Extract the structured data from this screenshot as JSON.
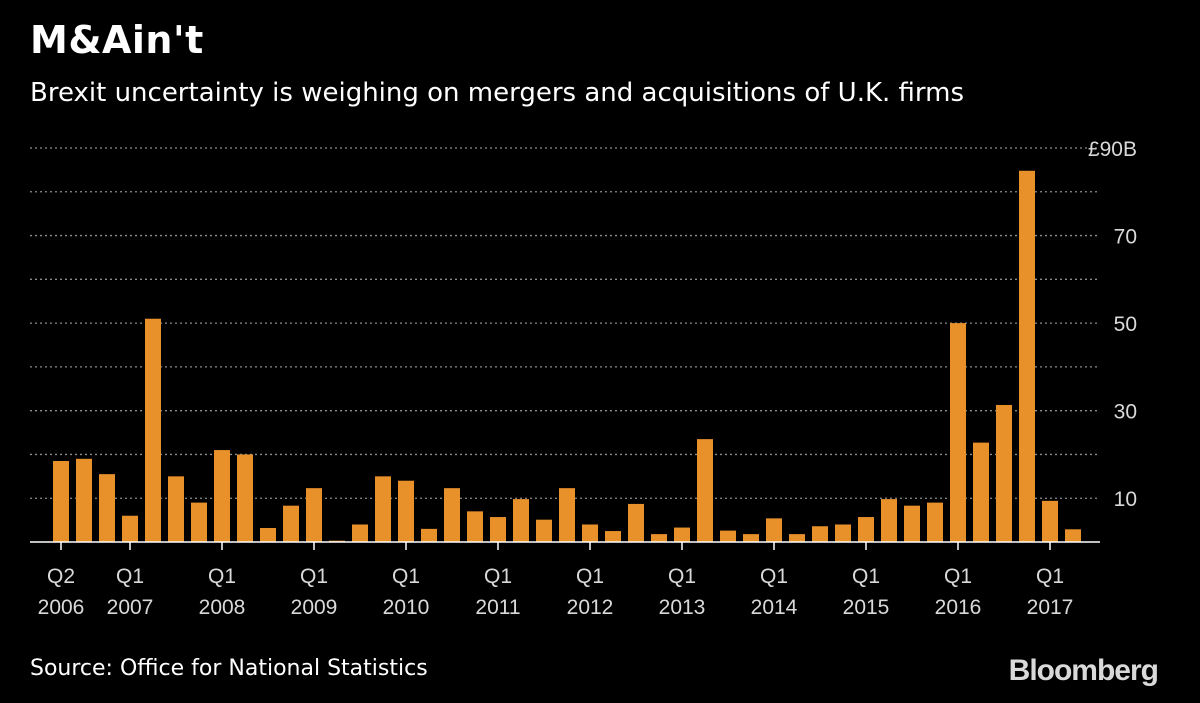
{
  "title": "M&Ain't",
  "subtitle": "Brexit uncertainty is weighing on mergers and acquisitions of U.K. firms",
  "source": "Source: Office for National Statistics",
  "brand": "Bloomberg",
  "colors": {
    "background": "#000000",
    "bar": "#e8912b",
    "grid": "#8c8c8c",
    "text": "#ffffff",
    "axis_text": "#d9d9d9"
  },
  "chart_data": {
    "type": "bar",
    "frequency": "quarterly",
    "categories": [
      "Q2 2006",
      "Q3 2006",
      "Q4 2006",
      "Q1 2007",
      "Q2 2007",
      "Q3 2007",
      "Q4 2007",
      "Q1 2008",
      "Q2 2008",
      "Q3 2008",
      "Q4 2008",
      "Q1 2009",
      "Q2 2009",
      "Q3 2009",
      "Q4 2009",
      "Q1 2010",
      "Q2 2010",
      "Q3 2010",
      "Q4 2010",
      "Q1 2011",
      "Q2 2011",
      "Q3 2011",
      "Q4 2011",
      "Q1 2012",
      "Q2 2012",
      "Q3 2012",
      "Q4 2012",
      "Q1 2013",
      "Q2 2013",
      "Q3 2013",
      "Q4 2013",
      "Q1 2014",
      "Q2 2014",
      "Q3 2014",
      "Q4 2014",
      "Q1 2015",
      "Q2 2015",
      "Q3 2015",
      "Q4 2015",
      "Q1 2016",
      "Q2 2016",
      "Q3 2016",
      "Q4 2016",
      "Q1 2017",
      "Q2 2017"
    ],
    "values": [
      18.5,
      19,
      15.5,
      6,
      51,
      15,
      9,
      21,
      20,
      3.2,
      8.3,
      12.3,
      0.3,
      4,
      15,
      14,
      3,
      12.3,
      7,
      5.7,
      9.8,
      5.1,
      12.3,
      4,
      2.5,
      8.7,
      1.8,
      3.3,
      23.5,
      2.6,
      1.8,
      5.4,
      1.8,
      3.6,
      4,
      5.7,
      9.8,
      8.3,
      9,
      50,
      22.7,
      31.3,
      84.8,
      9.4,
      2.9
    ],
    "unit": "£ billions",
    "ylim": [
      0,
      90
    ],
    "y_ticks": [
      {
        "value": 90,
        "label": "£90B"
      },
      {
        "value": 70,
        "label": "70"
      },
      {
        "value": 50,
        "label": "50"
      },
      {
        "value": 30,
        "label": "30"
      },
      {
        "value": 10,
        "label": "10"
      }
    ],
    "y_gridlines": [
      10,
      20,
      30,
      40,
      50,
      60,
      70,
      80,
      90
    ],
    "x_ticks": [
      {
        "index": 0,
        "quarter": "Q2",
        "year": "2006"
      },
      {
        "index": 3,
        "quarter": "Q1",
        "year": "2007"
      },
      {
        "index": 7,
        "quarter": "Q1",
        "year": "2008"
      },
      {
        "index": 11,
        "quarter": "Q1",
        "year": "2009"
      },
      {
        "index": 15,
        "quarter": "Q1",
        "year": "2010"
      },
      {
        "index": 19,
        "quarter": "Q1",
        "year": "2011"
      },
      {
        "index": 23,
        "quarter": "Q1",
        "year": "2012"
      },
      {
        "index": 27,
        "quarter": "Q1",
        "year": "2013"
      },
      {
        "index": 31,
        "quarter": "Q1",
        "year": "2014"
      },
      {
        "index": 35,
        "quarter": "Q1",
        "year": "2015"
      },
      {
        "index": 39,
        "quarter": "Q1",
        "year": "2016"
      },
      {
        "index": 43,
        "quarter": "Q1",
        "year": "2017"
      }
    ],
    "xlabel": "",
    "ylabel": "",
    "y_axis_side": "right",
    "grid": true,
    "legend": "none"
  }
}
